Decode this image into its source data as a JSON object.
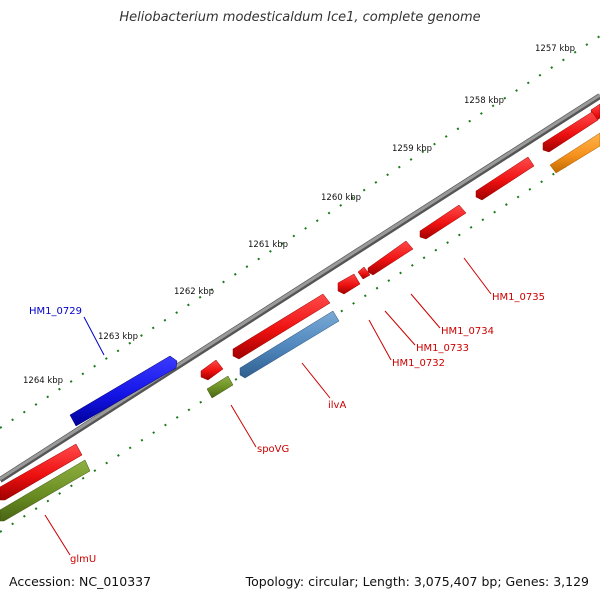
{
  "title": "Heliobacterium modesticaldum Ice1, complete genome",
  "footer": {
    "accession": "Accession: NC_010337",
    "summary": "Topology: circular; Length: 3,075,407 bp; Genes: 3,129"
  },
  "ticks": [
    "1257 kbp",
    "1258 kbp",
    "1259 kbp",
    "1260 kbp",
    "1261 kbp",
    "1262 kbp",
    "1263 kbp",
    "1264 kbp"
  ],
  "colors": {
    "backbone": "#808080",
    "forward_red": "#ee1111",
    "reverse_blue": "#1414e6",
    "steel_blue": "#4f86bc",
    "olive_green": "#6b8e23",
    "orange": "#f6921e",
    "tick_green": "#1a7a1a",
    "label_red": "#cc0000",
    "label_blue": "#0000cc"
  },
  "gene_labels": {
    "HM1_0729": "HM1_0729",
    "HM1_0735": "HM1_0735",
    "HM1_0734": "HM1_0734",
    "HM1_0733": "HM1_0733",
    "HM1_0732": "HM1_0732",
    "ilvA": "ilvA",
    "spoVG": "spoVG",
    "glmU": "glmU"
  }
}
